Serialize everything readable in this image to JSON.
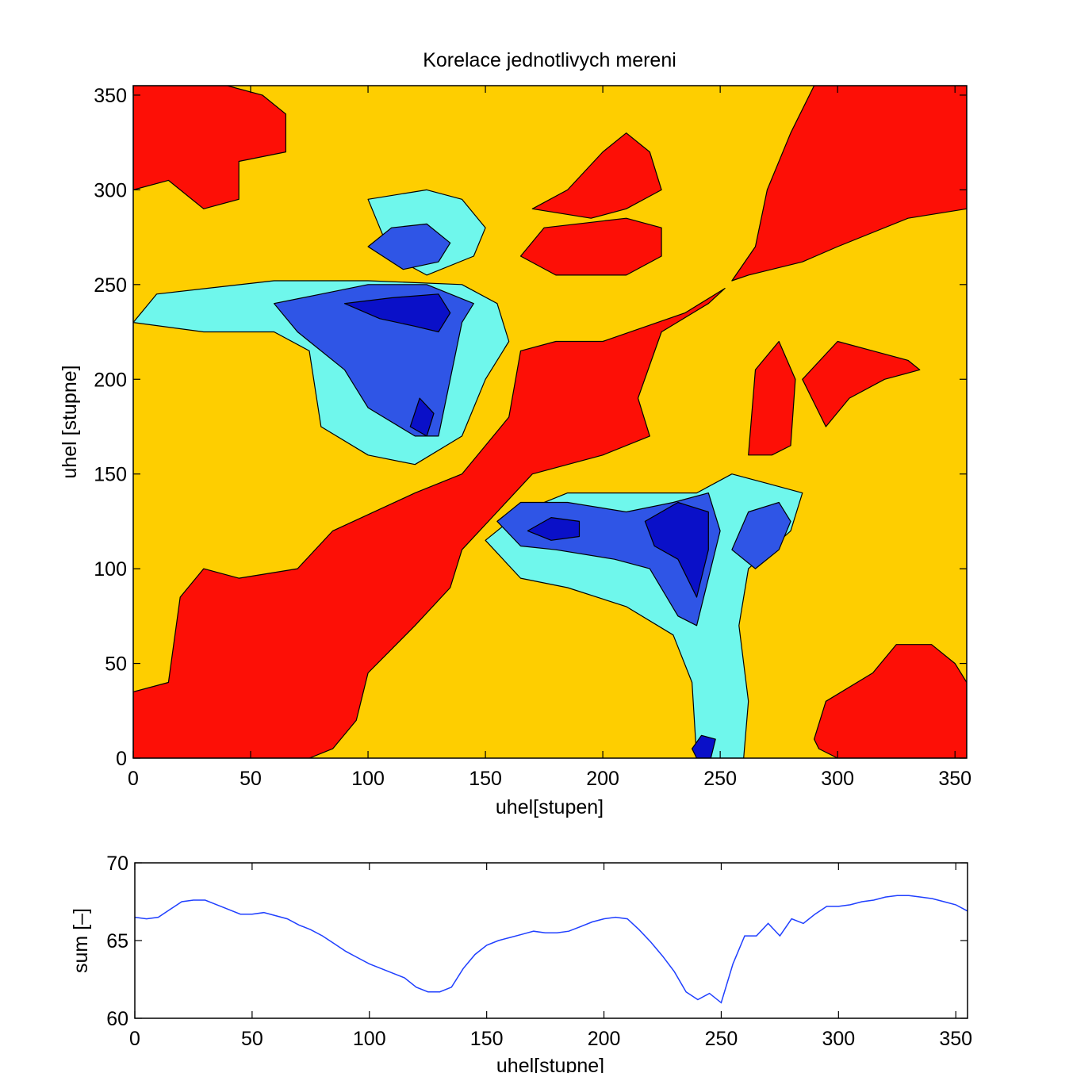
{
  "chart_data": [
    {
      "type": "heatmap",
      "subtype": "filled-contour",
      "title": "Korelace jednotlivych mereni",
      "xlabel": "uhel[stupen]",
      "ylabel": "uhel [stupne]",
      "xlim": [
        0,
        355
      ],
      "ylim": [
        0,
        355
      ],
      "xticks": [
        0,
        50,
        100,
        150,
        200,
        250,
        300,
        350
      ],
      "yticks": [
        0,
        50,
        100,
        150,
        200,
        250,
        300,
        350
      ],
      "levels": [
        {
          "name": "level-1",
          "color": "#0a10c8"
        },
        {
          "name": "level-2",
          "color": "#2f55e6"
        },
        {
          "name": "level-3",
          "color": "#6ff7ec"
        },
        {
          "name": "level-4",
          "color": "#9bf72f"
        },
        {
          "name": "level-5",
          "color": "#fece00"
        },
        {
          "name": "level-6",
          "color": "#fd0f06"
        }
      ],
      "regions": [
        {
          "level": 6,
          "name": "diagonal-band",
          "points": [
            [
              0,
              0
            ],
            [
              0,
              35
            ],
            [
              15,
              40
            ],
            [
              20,
              85
            ],
            [
              30,
              100
            ],
            [
              45,
              95
            ],
            [
              70,
              100
            ],
            [
              85,
              120
            ],
            [
              120,
              140
            ],
            [
              140,
              150
            ],
            [
              160,
              180
            ],
            [
              165,
              215
            ],
            [
              180,
              220
            ],
            [
              200,
              220
            ],
            [
              235,
              235
            ],
            [
              252,
              248
            ],
            [
              245,
              240
            ],
            [
              225,
              225
            ],
            [
              215,
              190
            ],
            [
              220,
              170
            ],
            [
              200,
              160
            ],
            [
              170,
              150
            ],
            [
              155,
              130
            ],
            [
              140,
              110
            ],
            [
              135,
              90
            ],
            [
              120,
              70
            ],
            [
              100,
              45
            ],
            [
              95,
              20
            ],
            [
              85,
              5
            ],
            [
              75,
              0
            ]
          ]
        },
        {
          "level": 6,
          "name": "top-right-block",
          "points": [
            [
              255,
              252
            ],
            [
              265,
              270
            ],
            [
              270,
              300
            ],
            [
              280,
              330
            ],
            [
              290,
              355
            ],
            [
              355,
              355
            ],
            [
              355,
              290
            ],
            [
              330,
              285
            ],
            [
              300,
              270
            ],
            [
              285,
              262
            ],
            [
              262,
              255
            ]
          ]
        },
        {
          "level": 6,
          "name": "top-left-block",
          "points": [
            [
              0,
              300
            ],
            [
              15,
              305
            ],
            [
              30,
              290
            ],
            [
              45,
              295
            ],
            [
              45,
              315
            ],
            [
              65,
              320
            ],
            [
              65,
              340
            ],
            [
              55,
              350
            ],
            [
              40,
              355
            ],
            [
              0,
              355
            ]
          ]
        },
        {
          "level": 6,
          "name": "top-middle-block",
          "points": [
            [
              170,
              290
            ],
            [
              185,
              300
            ],
            [
              200,
              320
            ],
            [
              210,
              330
            ],
            [
              220,
              320
            ],
            [
              225,
              300
            ],
            [
              210,
              290
            ],
            [
              195,
              285
            ]
          ]
        },
        {
          "level": 6,
          "name": "upper-middle-block",
          "points": [
            [
              165,
              265
            ],
            [
              175,
              280
            ],
            [
              210,
              285
            ],
            [
              225,
              280
            ],
            [
              225,
              265
            ],
            [
              210,
              255
            ],
            [
              180,
              255
            ]
          ]
        },
        {
          "level": 6,
          "name": "right-middle-a",
          "points": [
            [
              262,
              160
            ],
            [
              265,
              205
            ],
            [
              275,
              220
            ],
            [
              282,
              200
            ],
            [
              280,
              165
            ],
            [
              272,
              160
            ]
          ]
        },
        {
          "level": 6,
          "name": "right-middle-b",
          "points": [
            [
              285,
              200
            ],
            [
              300,
              220
            ],
            [
              315,
              215
            ],
            [
              330,
              210
            ],
            [
              335,
              205
            ],
            [
              320,
              200
            ],
            [
              305,
              190
            ],
            [
              295,
              175
            ]
          ]
        },
        {
          "level": 6,
          "name": "bottom-right-block",
          "points": [
            [
              290,
              10
            ],
            [
              295,
              30
            ],
            [
              315,
              45
            ],
            [
              325,
              60
            ],
            [
              340,
              60
            ],
            [
              350,
              50
            ],
            [
              355,
              40
            ],
            [
              355,
              0
            ],
            [
              300,
              0
            ],
            [
              292,
              5
            ]
          ]
        },
        {
          "level": 3,
          "name": "cyan-band-left",
          "points": [
            [
              0,
              230
            ],
            [
              10,
              245
            ],
            [
              60,
              252
            ],
            [
              100,
              252
            ],
            [
              140,
              250
            ],
            [
              155,
              240
            ],
            [
              160,
              220
            ],
            [
              150,
              200
            ],
            [
              140,
              170
            ],
            [
              120,
              155
            ],
            [
              100,
              160
            ],
            [
              80,
              175
            ],
            [
              75,
              215
            ],
            [
              60,
              225
            ],
            [
              30,
              225
            ]
          ]
        },
        {
          "level": 3,
          "name": "cyan-band-lower",
          "points": [
            [
              150,
              115
            ],
            [
              165,
              95
            ],
            [
              185,
              90
            ],
            [
              210,
              80
            ],
            [
              230,
              65
            ],
            [
              238,
              40
            ],
            [
              240,
              0
            ],
            [
              260,
              0
            ],
            [
              262,
              30
            ],
            [
              258,
              70
            ],
            [
              262,
              100
            ],
            [
              280,
              120
            ],
            [
              285,
              140
            ],
            [
              270,
              145
            ],
            [
              255,
              150
            ],
            [
              240,
              140
            ],
            [
              215,
              140
            ],
            [
              185,
              140
            ],
            [
              165,
              130
            ]
          ]
        },
        {
          "level": 3,
          "name": "cyan-top",
          "points": [
            [
              100,
              295
            ],
            [
              125,
              300
            ],
            [
              140,
              295
            ],
            [
              150,
              280
            ],
            [
              145,
              265
            ],
            [
              125,
              255
            ],
            [
              110,
              265
            ],
            [
              105,
              280
            ]
          ]
        },
        {
          "level": 2,
          "name": "blue-upper",
          "points": [
            [
              60,
              240
            ],
            [
              80,
              245
            ],
            [
              100,
              250
            ],
            [
              125,
              250
            ],
            [
              145,
              240
            ],
            [
              140,
              230
            ],
            [
              135,
              200
            ],
            [
              130,
              170
            ],
            [
              120,
              170
            ],
            [
              100,
              185
            ],
            [
              90,
              205
            ],
            [
              70,
              225
            ]
          ]
        },
        {
          "level": 2,
          "name": "blue-top",
          "points": [
            [
              100,
              270
            ],
            [
              110,
              280
            ],
            [
              125,
              282
            ],
            [
              135,
              272
            ],
            [
              130,
              262
            ],
            [
              115,
              258
            ]
          ]
        },
        {
          "level": 2,
          "name": "blue-lower",
          "points": [
            [
              155,
              125
            ],
            [
              165,
              135
            ],
            [
              185,
              135
            ],
            [
              210,
              130
            ],
            [
              230,
              135
            ],
            [
              245,
              140
            ],
            [
              250,
              120
            ],
            [
              245,
              95
            ],
            [
              240,
              70
            ],
            [
              232,
              75
            ],
            [
              220,
              100
            ],
            [
              205,
              105
            ],
            [
              180,
              110
            ],
            [
              165,
              112
            ]
          ]
        },
        {
          "level": 2,
          "name": "blue-lower-right",
          "points": [
            [
              255,
              110
            ],
            [
              262,
              130
            ],
            [
              275,
              135
            ],
            [
              280,
              125
            ],
            [
              275,
              110
            ],
            [
              265,
              100
            ]
          ]
        },
        {
          "level": 1,
          "name": "navy-upper",
          "points": [
            [
              90,
              240
            ],
            [
              110,
              243
            ],
            [
              130,
              245
            ],
            [
              135,
              235
            ],
            [
              130,
              225
            ],
            [
              120,
              228
            ],
            [
              105,
              232
            ]
          ]
        },
        {
          "level": 1,
          "name": "navy-mid",
          "points": [
            [
              118,
              175
            ],
            [
              122,
              190
            ],
            [
              128,
              182
            ],
            [
              125,
              170
            ]
          ]
        },
        {
          "level": 1,
          "name": "navy-lower-a",
          "points": [
            [
              168,
              120
            ],
            [
              178,
              127
            ],
            [
              190,
              125
            ],
            [
              190,
              117
            ],
            [
              178,
              115
            ]
          ]
        },
        {
          "level": 1,
          "name": "navy-lower-b",
          "points": [
            [
              218,
              125
            ],
            [
              232,
              135
            ],
            [
              245,
              130
            ],
            [
              245,
              110
            ],
            [
              240,
              85
            ],
            [
              232,
              105
            ],
            [
              222,
              112
            ]
          ]
        },
        {
          "level": 1,
          "name": "navy-bottom",
          "points": [
            [
              238,
              5
            ],
            [
              242,
              12
            ],
            [
              248,
              10
            ],
            [
              246,
              0
            ],
            [
              240,
              0
            ]
          ]
        }
      ]
    },
    {
      "type": "line",
      "xlabel": "uhel[stupne]",
      "ylabel": "sum [–]",
      "xlim": [
        0,
        355
      ],
      "ylim": [
        60,
        70
      ],
      "xticks": [
        0,
        50,
        100,
        150,
        200,
        250,
        300,
        350
      ],
      "yticks": [
        60,
        65,
        70
      ],
      "line_color": "#1f3fff",
      "x": [
        0,
        5,
        10,
        15,
        20,
        25,
        30,
        35,
        40,
        45,
        50,
        55,
        60,
        65,
        70,
        75,
        80,
        85,
        90,
        95,
        100,
        105,
        110,
        115,
        120,
        125,
        130,
        135,
        140,
        145,
        150,
        155,
        160,
        165,
        170,
        175,
        180,
        185,
        190,
        195,
        200,
        205,
        210,
        215,
        220,
        225,
        230,
        235,
        240,
        245,
        250,
        255,
        260,
        265,
        270,
        275,
        280,
        285,
        290,
        295,
        300,
        305,
        310,
        315,
        320,
        325,
        330,
        335,
        340,
        345,
        350,
        355
      ],
      "values": [
        66.5,
        66.4,
        66.5,
        67.0,
        67.5,
        67.6,
        67.6,
        67.3,
        67.0,
        66.7,
        66.7,
        66.8,
        66.6,
        66.4,
        66.0,
        65.7,
        65.3,
        64.8,
        64.3,
        63.9,
        63.5,
        63.2,
        62.9,
        62.6,
        62.0,
        61.7,
        61.7,
        62.0,
        63.2,
        64.1,
        64.7,
        65.0,
        65.2,
        65.4,
        65.6,
        65.5,
        65.5,
        65.6,
        65.9,
        66.2,
        66.4,
        66.5,
        66.4,
        65.7,
        64.9,
        64.0,
        63.0,
        61.7,
        61.2,
        61.6,
        61.0,
        63.5,
        65.3,
        65.3,
        66.1,
        65.3,
        66.4,
        66.1,
        66.7,
        67.2,
        67.2,
        67.3,
        67.5,
        67.6,
        67.8,
        67.9,
        67.9,
        67.8,
        67.7,
        67.5,
        67.3,
        66.9
      ]
    }
  ]
}
